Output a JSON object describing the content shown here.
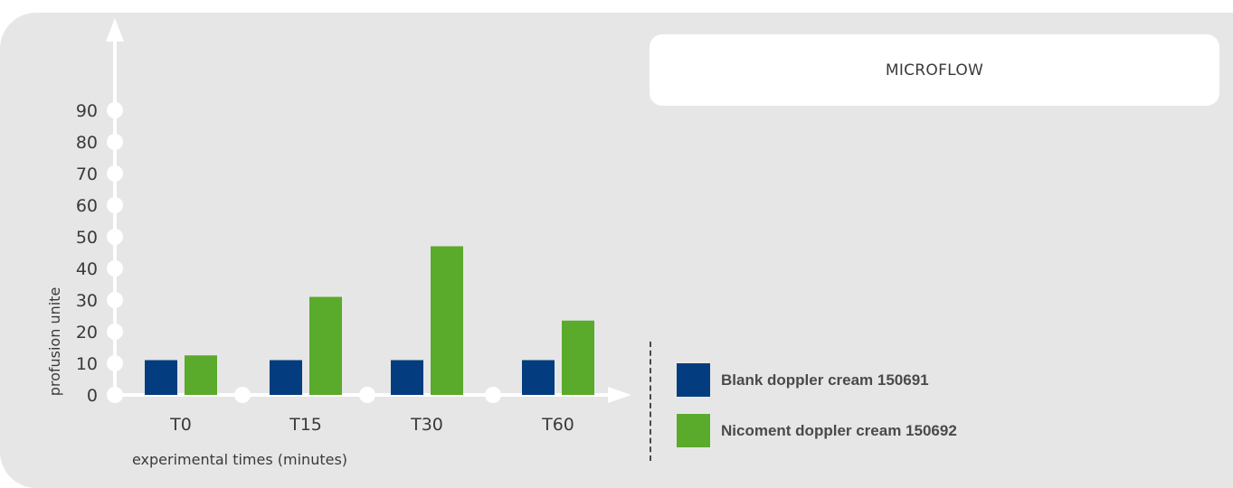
{
  "chart_data": {
    "type": "bar",
    "title": "MICROFLOW",
    "xlabel": "experimental times (minutes)",
    "ylabel": "profusion unite",
    "categories": [
      "T0",
      "T15",
      "T30",
      "T60"
    ],
    "yticks": [
      0,
      10,
      20,
      30,
      40,
      50,
      60,
      70,
      80,
      90
    ],
    "ylim": [
      0,
      90
    ],
    "grid": false,
    "legend_position": "bottom-right",
    "series": [
      {
        "name": "Blank doppler cream 150691",
        "color": "#033d7f",
        "values": [
          11,
          11,
          11,
          11
        ]
      },
      {
        "name": "Nicoment doppler cream 150692",
        "color": "#5aaa2b",
        "values": [
          12.5,
          31,
          47,
          23.5
        ]
      }
    ]
  },
  "colors": {
    "panel_bg": "#e6e6e6",
    "axis": "#ffffff",
    "tick_text": "#3a3a3a"
  }
}
